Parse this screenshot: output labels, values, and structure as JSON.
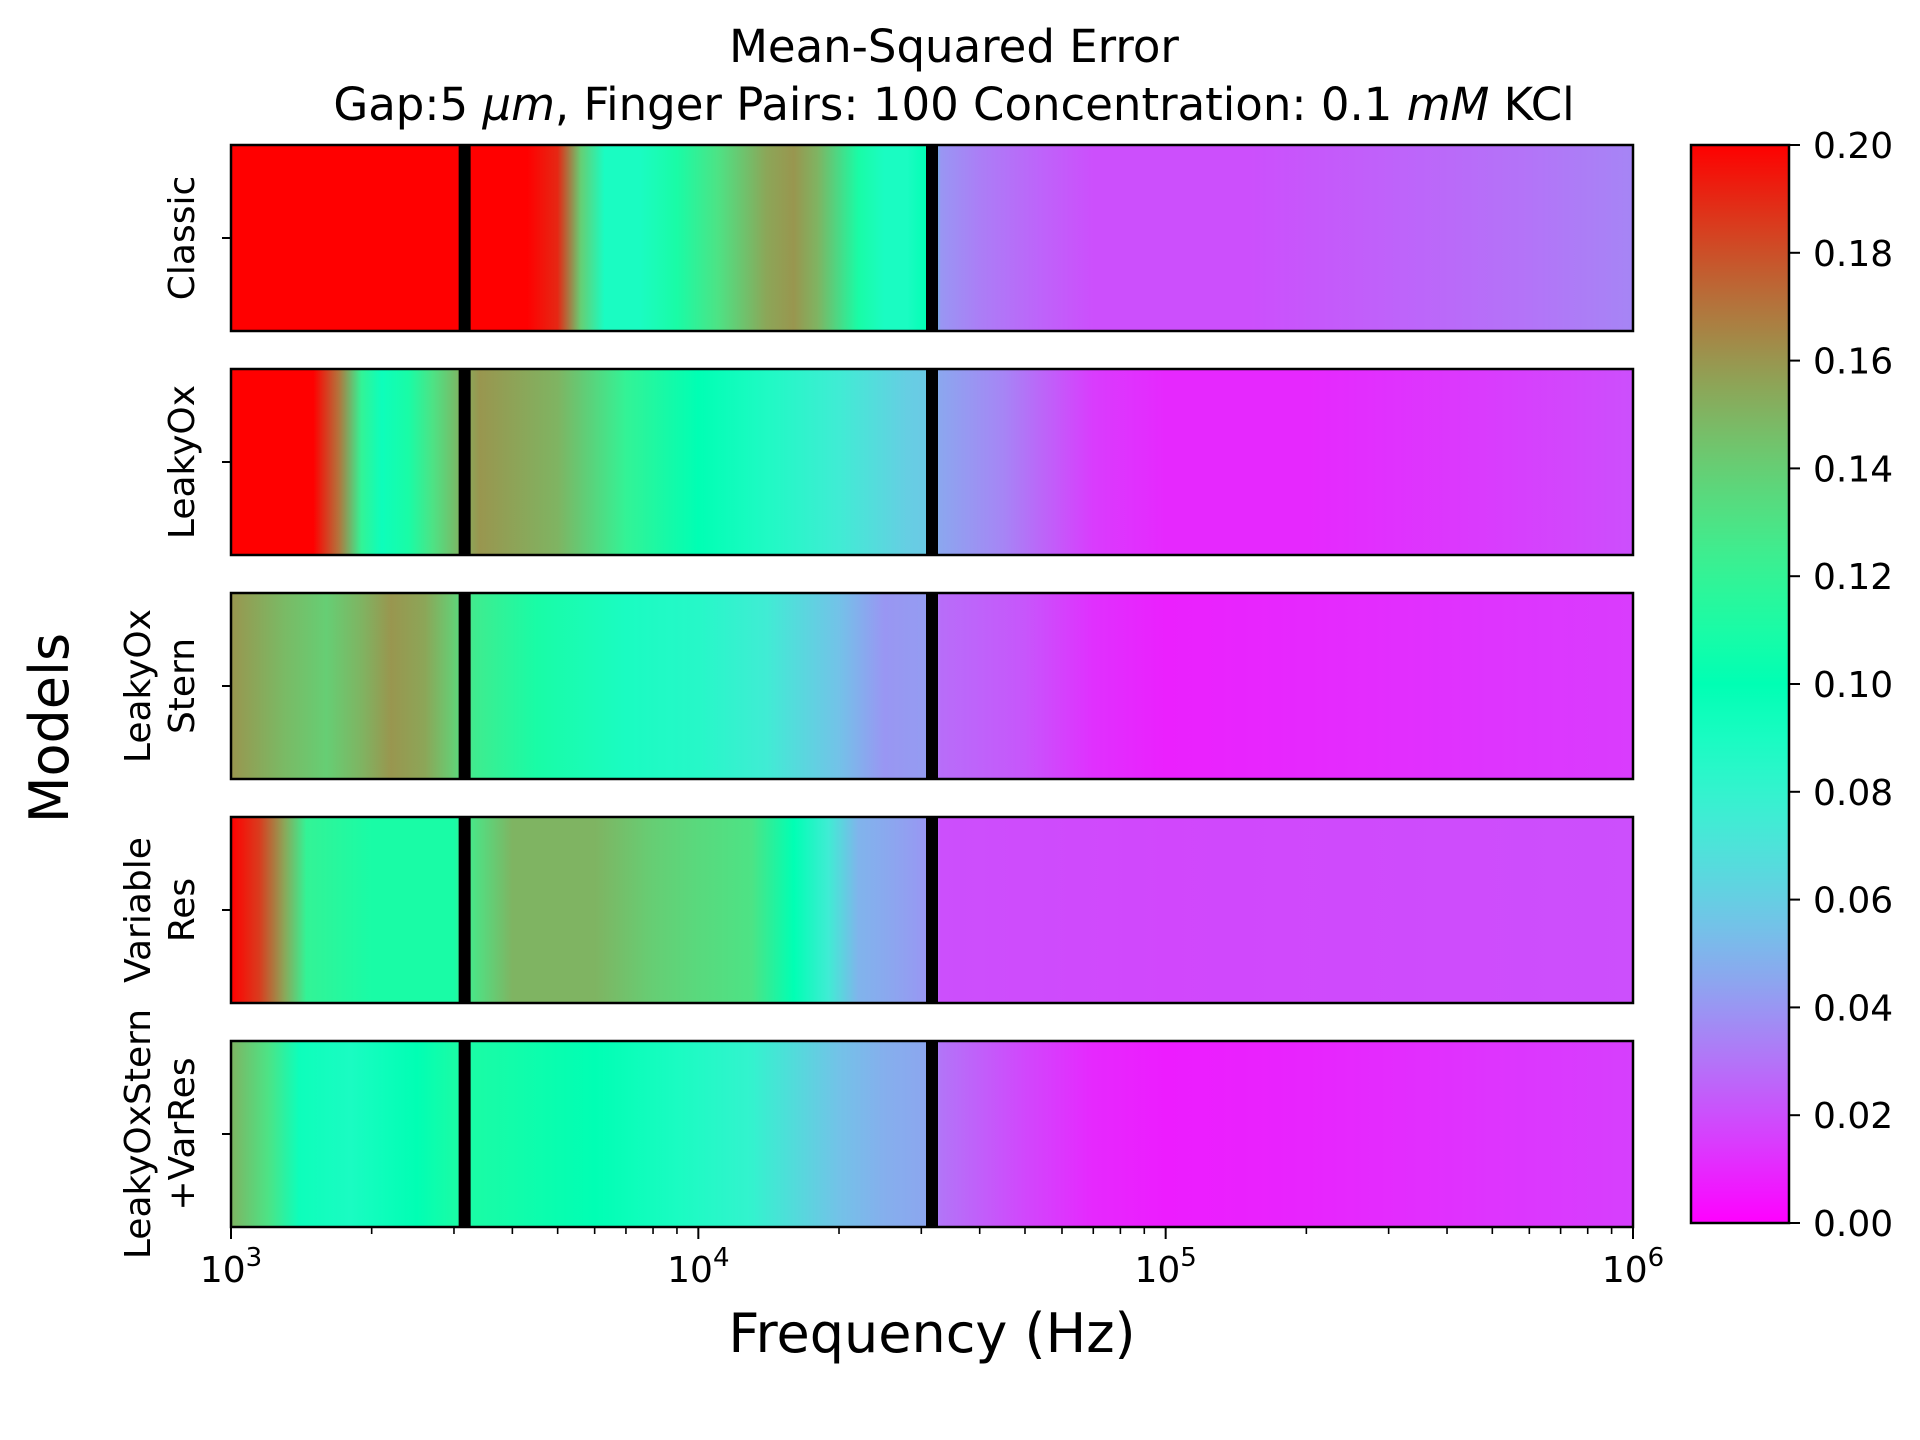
{
  "chart_data": {
    "type": "heatmap",
    "title": "Mean-Squared Error",
    "subtitle_parts": [
      {
        "text": "Gap:5 ",
        "italic": false
      },
      {
        "text": "μm",
        "italic": true
      },
      {
        "text": ", Finger Pairs: 100 Concentration: 0.1 ",
        "italic": false
      },
      {
        "text": "mM",
        "italic": true
      },
      {
        "text": " KCl",
        "italic": false
      }
    ],
    "xlabel": "Frequency (Hz)",
    "ylabel": "Models",
    "x_scale": "log",
    "xlim": [
      1000,
      1000000
    ],
    "x_ticks": [
      {
        "value": 1000,
        "base": "10",
        "exp": "3"
      },
      {
        "value": 10000,
        "base": "10",
        "exp": "4"
      },
      {
        "value": 100000,
        "base": "10",
        "exp": "5"
      },
      {
        "value": 1000000,
        "base": "10",
        "exp": "6"
      }
    ],
    "vertical_markers": [
      3162,
      31623
    ],
    "colormap": "rainbow",
    "colorbar": {
      "range": [
        0.0,
        0.2
      ],
      "ticks": [
        "0.00",
        "0.02",
        "0.04",
        "0.06",
        "0.08",
        "0.10",
        "0.12",
        "0.14",
        "0.16",
        "0.18",
        "0.20"
      ]
    },
    "rows": [
      {
        "label_lines": [
          "Classic"
        ],
        "points": [
          [
            1000,
            0.2
          ],
          [
            3000,
            0.2
          ],
          [
            4300,
            0.2
          ],
          [
            5000,
            0.19
          ],
          [
            5600,
            0.14
          ],
          [
            6300,
            0.09
          ],
          [
            7500,
            0.09
          ],
          [
            9000,
            0.11
          ],
          [
            11000,
            0.13
          ],
          [
            14000,
            0.155
          ],
          [
            16000,
            0.16
          ],
          [
            18000,
            0.15
          ],
          [
            22000,
            0.11
          ],
          [
            25000,
            0.09
          ],
          [
            28000,
            0.09
          ],
          [
            31000,
            0.1
          ],
          [
            33000,
            0.04
          ],
          [
            40000,
            0.033
          ],
          [
            55000,
            0.025
          ],
          [
            70000,
            0.02
          ],
          [
            150000,
            0.02
          ],
          [
            300000,
            0.025
          ],
          [
            600000,
            0.03
          ],
          [
            1000000,
            0.035
          ]
        ]
      },
      {
        "label_lines": [
          "LeakyOx"
        ],
        "points": [
          [
            1000,
            0.2
          ],
          [
            1500,
            0.2
          ],
          [
            1700,
            0.17
          ],
          [
            1900,
            0.12
          ],
          [
            2100,
            0.095
          ],
          [
            2400,
            0.11
          ],
          [
            2700,
            0.13
          ],
          [
            3100,
            0.15
          ],
          [
            3400,
            0.16
          ],
          [
            5000,
            0.15
          ],
          [
            7000,
            0.12
          ],
          [
            10000,
            0.1
          ],
          [
            14000,
            0.088
          ],
          [
            20000,
            0.075
          ],
          [
            28000,
            0.06
          ],
          [
            31000,
            0.058
          ],
          [
            33000,
            0.045
          ],
          [
            45000,
            0.035
          ],
          [
            70000,
            0.015
          ],
          [
            100000,
            0.01
          ],
          [
            200000,
            0.01
          ],
          [
            500000,
            0.015
          ],
          [
            1000000,
            0.02
          ]
        ]
      },
      {
        "label_lines": [
          "LeakyOx",
          "Stern"
        ],
        "points": [
          [
            1000,
            0.16
          ],
          [
            1300,
            0.148
          ],
          [
            1600,
            0.14
          ],
          [
            1900,
            0.15
          ],
          [
            2200,
            0.16
          ],
          [
            2600,
            0.155
          ],
          [
            3000,
            0.14
          ],
          [
            3300,
            0.125
          ],
          [
            4500,
            0.11
          ],
          [
            7000,
            0.09
          ],
          [
            10000,
            0.085
          ],
          [
            14000,
            0.075
          ],
          [
            20000,
            0.055
          ],
          [
            25000,
            0.04
          ],
          [
            31000,
            0.042
          ],
          [
            33000,
            0.028
          ],
          [
            50000,
            0.022
          ],
          [
            70000,
            0.012
          ],
          [
            100000,
            0.008
          ],
          [
            200000,
            0.01
          ],
          [
            500000,
            0.013
          ],
          [
            1000000,
            0.015
          ]
        ]
      },
      {
        "label_lines": [
          "Variable",
          "Res"
        ],
        "points": [
          [
            1000,
            0.2
          ],
          [
            1150,
            0.185
          ],
          [
            1300,
            0.155
          ],
          [
            1450,
            0.12
          ],
          [
            2000,
            0.11
          ],
          [
            3000,
            0.11
          ],
          [
            3300,
            0.13
          ],
          [
            4000,
            0.15
          ],
          [
            6000,
            0.15
          ],
          [
            8000,
            0.14
          ],
          [
            10000,
            0.135
          ],
          [
            13000,
            0.13
          ],
          [
            16000,
            0.1
          ],
          [
            19000,
            0.075
          ],
          [
            22000,
            0.05
          ],
          [
            26000,
            0.045
          ],
          [
            31000,
            0.04
          ],
          [
            33000,
            0.02
          ],
          [
            100000,
            0.018
          ],
          [
            1000000,
            0.02
          ]
        ]
      },
      {
        "label_lines": [
          "LeakyOxStern",
          "+VarRes"
        ],
        "points": [
          [
            1000,
            0.15
          ],
          [
            1200,
            0.13
          ],
          [
            1400,
            0.095
          ],
          [
            1800,
            0.09
          ],
          [
            2500,
            0.1
          ],
          [
            3000,
            0.11
          ],
          [
            3400,
            0.11
          ],
          [
            6000,
            0.1
          ],
          [
            9000,
            0.09
          ],
          [
            13000,
            0.08
          ],
          [
            20000,
            0.055
          ],
          [
            25000,
            0.048
          ],
          [
            31000,
            0.045
          ],
          [
            33000,
            0.03
          ],
          [
            50000,
            0.018
          ],
          [
            70000,
            0.01
          ],
          [
            100000,
            0.007
          ],
          [
            200000,
            0.009
          ],
          [
            500000,
            0.013
          ],
          [
            1000000,
            0.016
          ]
        ]
      }
    ]
  }
}
